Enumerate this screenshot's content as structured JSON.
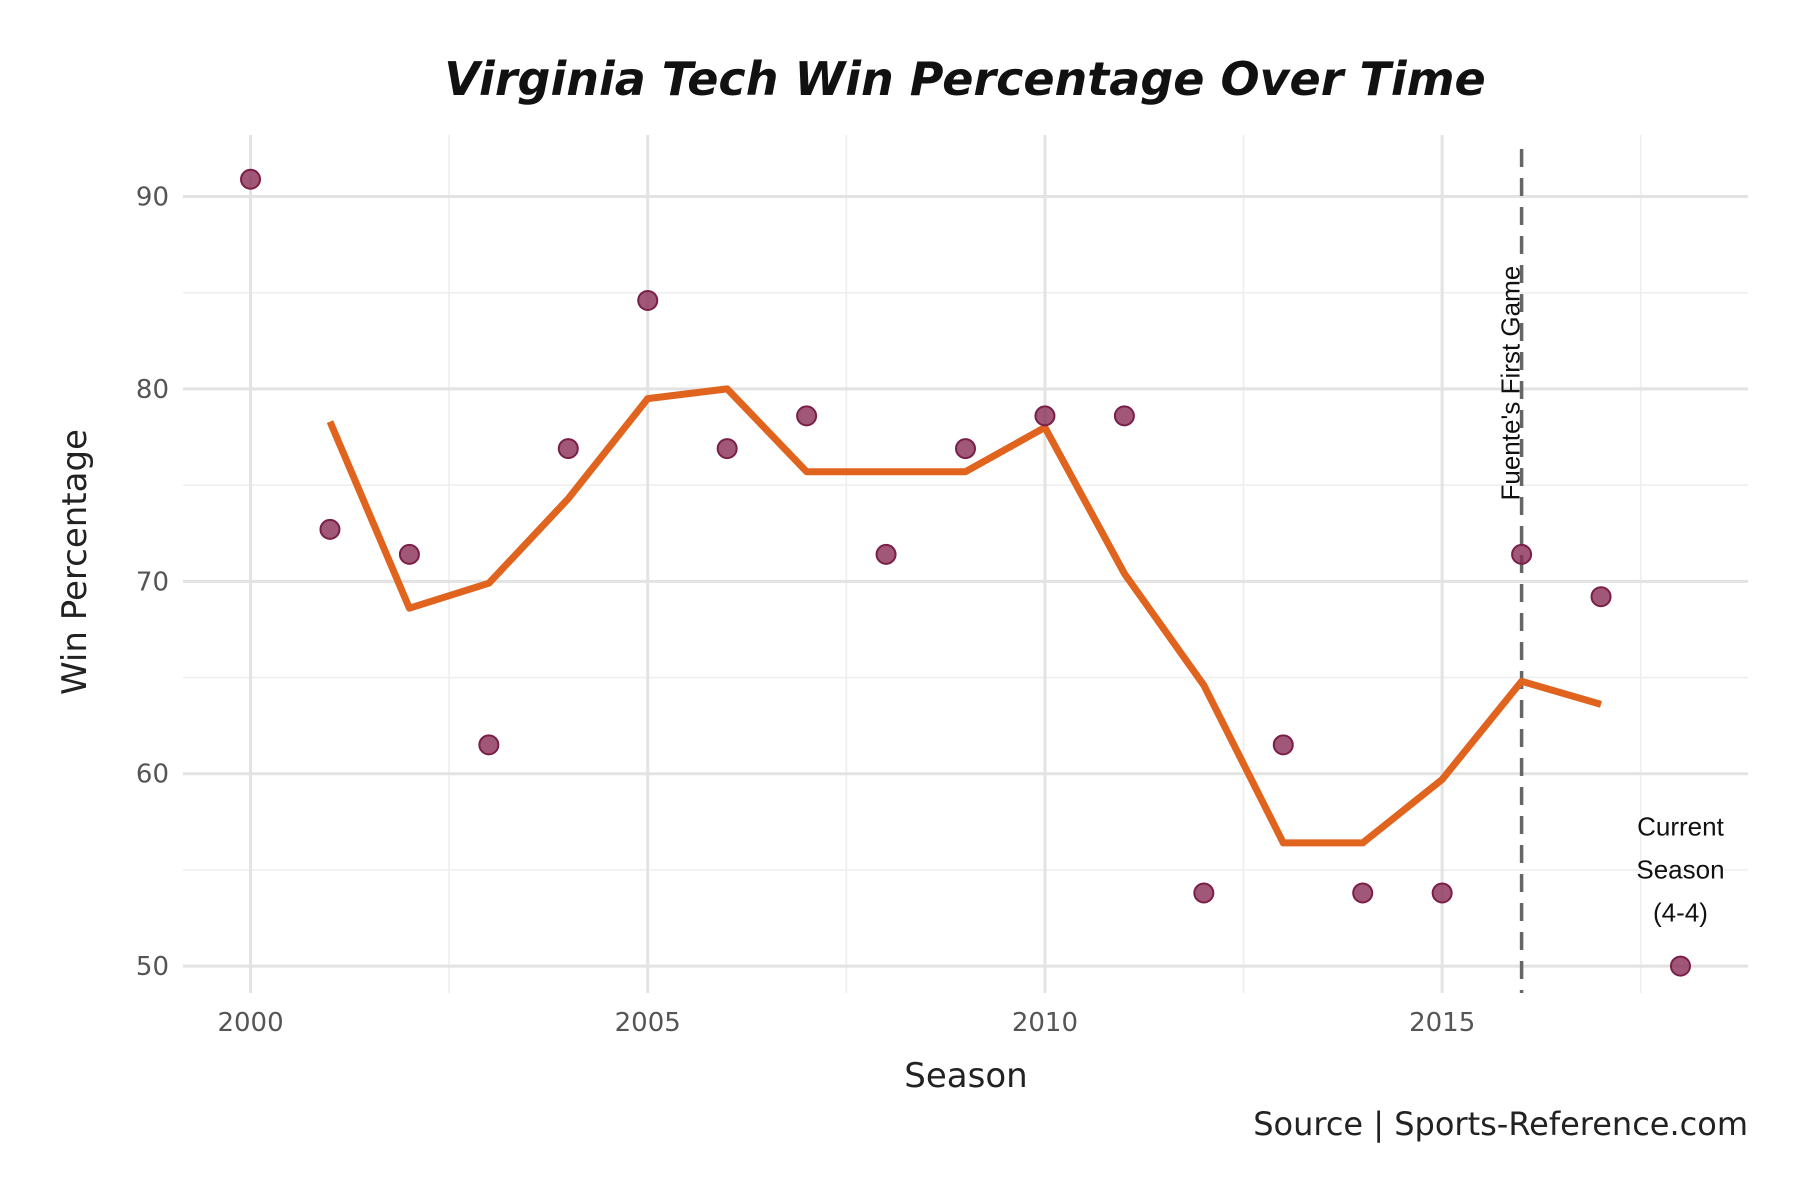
{
  "chart_data": {
    "type": "scatter",
    "title": "Virginia Tech Win Percentage Over Time",
    "xlabel": "Season",
    "ylabel": "Win Percentage",
    "caption": "Source | Sports-Reference.com",
    "xlim": [
      1999.15,
      2018.85
    ],
    "ylim": [
      48.6,
      93.2
    ],
    "x_ticks": [
      2000,
      2005,
      2010,
      2015
    ],
    "y_ticks": [
      50,
      60,
      70,
      80,
      90
    ],
    "grid": true,
    "colors": {
      "points": "#8a2d55",
      "line": "#e0631e",
      "vline": "#666666"
    },
    "series": [
      {
        "kind": "points",
        "x": [
          2000,
          2001,
          2002,
          2003,
          2004,
          2005,
          2006,
          2007,
          2008,
          2009,
          2010,
          2011,
          2012,
          2013,
          2014,
          2015,
          2016,
          2017,
          2018
        ],
        "y": [
          90.9,
          72.7,
          71.4,
          61.5,
          76.9,
          84.6,
          76.9,
          78.6,
          71.4,
          76.9,
          78.6,
          78.6,
          53.8,
          61.5,
          53.8,
          53.8,
          71.4,
          69.2,
          50.0
        ]
      },
      {
        "kind": "line",
        "x": [
          2001,
          2002,
          2003,
          2004,
          2005,
          2006,
          2007,
          2008,
          2009,
          2010,
          2011,
          2012,
          2013,
          2014,
          2015,
          2016,
          2017
        ],
        "y": [
          78.3,
          68.6,
          69.9,
          74.3,
          79.5,
          80.0,
          75.7,
          75.7,
          75.7,
          78.0,
          70.4,
          64.6,
          56.4,
          56.4,
          59.7,
          64.8,
          63.6
        ]
      }
    ],
    "annotations": [
      {
        "text": "Fuente's First Game",
        "x": 2016,
        "y": 80.3,
        "vertical": true
      },
      {
        "lines": [
          "Current",
          "Season",
          "(4-4)"
        ],
        "x": 2018,
        "y": 56.8
      }
    ],
    "vline": {
      "x": 2016
    }
  }
}
